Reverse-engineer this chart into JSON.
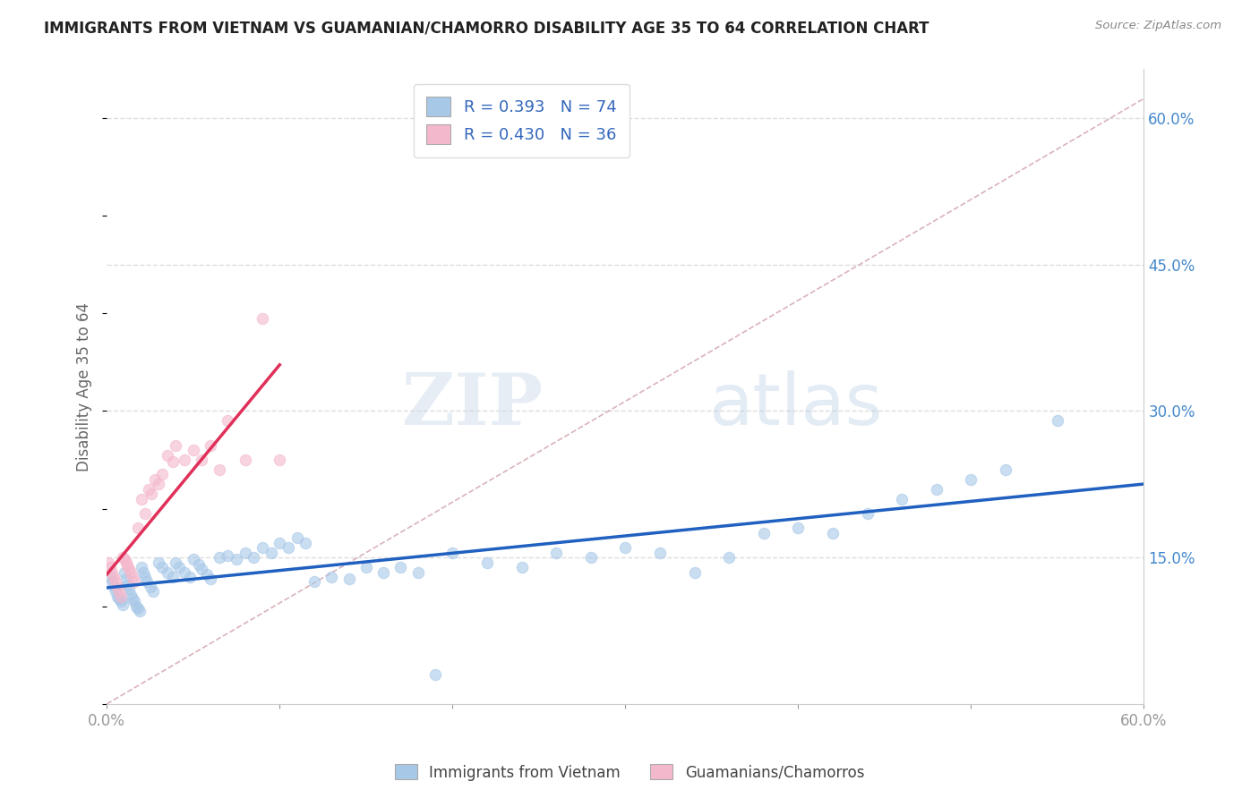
{
  "title": "IMMIGRANTS FROM VIETNAM VS GUAMANIAN/CHAMORRO DISABILITY AGE 35 TO 64 CORRELATION CHART",
  "source": "Source: ZipAtlas.com",
  "ylabel_label": "Disability Age 35 to 64",
  "xlim": [
    0.0,
    0.6
  ],
  "ylim": [
    0.0,
    0.65
  ],
  "xticks": [
    0.0,
    0.1,
    0.2,
    0.3,
    0.4,
    0.5,
    0.6
  ],
  "xticklabels": [
    "0.0%",
    "",
    "",
    "",
    "",
    "",
    "60.0%"
  ],
  "yticks_right": [
    0.15,
    0.3,
    0.45,
    0.6
  ],
  "ytick_right_labels": [
    "15.0%",
    "30.0%",
    "45.0%",
    "60.0%"
  ],
  "color_vietnam": "#a8c8e8",
  "color_guam": "#f4b8cc",
  "color_vietnam_line": "#2060c0",
  "color_guam_line": "#e0305a",
  "color_trendline_dashed": "#d0a0a8",
  "R_vietnam": 0.393,
  "N_vietnam": 74,
  "R_guam": 0.43,
  "N_guam": 36,
  "legend1_label": "Immigrants from Vietnam",
  "legend2_label": "Guamanians/Chamorros",
  "watermark_zip": "ZIP",
  "watermark_atlas": "atlas",
  "vietnam_x": [
    0.002,
    0.003,
    0.004,
    0.005,
    0.006,
    0.007,
    0.008,
    0.009,
    0.01,
    0.011,
    0.012,
    0.013,
    0.014,
    0.015,
    0.016,
    0.017,
    0.018,
    0.019,
    0.02,
    0.021,
    0.022,
    0.023,
    0.025,
    0.027,
    0.03,
    0.032,
    0.035,
    0.038,
    0.04,
    0.042,
    0.045,
    0.048,
    0.05,
    0.053,
    0.055,
    0.058,
    0.06,
    0.065,
    0.07,
    0.075,
    0.08,
    0.085,
    0.09,
    0.095,
    0.1,
    0.105,
    0.11,
    0.115,
    0.12,
    0.13,
    0.14,
    0.15,
    0.16,
    0.17,
    0.18,
    0.19,
    0.2,
    0.22,
    0.24,
    0.26,
    0.28,
    0.3,
    0.32,
    0.34,
    0.36,
    0.38,
    0.4,
    0.42,
    0.44,
    0.46,
    0.48,
    0.5,
    0.52,
    0.55
  ],
  "vietnam_y": [
    0.13,
    0.125,
    0.12,
    0.115,
    0.11,
    0.108,
    0.105,
    0.102,
    0.135,
    0.128,
    0.122,
    0.118,
    0.112,
    0.108,
    0.105,
    0.1,
    0.098,
    0.095,
    0.14,
    0.135,
    0.13,
    0.125,
    0.12,
    0.115,
    0.145,
    0.14,
    0.135,
    0.13,
    0.145,
    0.14,
    0.135,
    0.13,
    0.148,
    0.143,
    0.138,
    0.133,
    0.128,
    0.15,
    0.152,
    0.148,
    0.155,
    0.15,
    0.16,
    0.155,
    0.165,
    0.16,
    0.17,
    0.165,
    0.125,
    0.13,
    0.128,
    0.14,
    0.135,
    0.14,
    0.135,
    0.03,
    0.155,
    0.145,
    0.14,
    0.155,
    0.15,
    0.16,
    0.155,
    0.135,
    0.15,
    0.175,
    0.18,
    0.175,
    0.195,
    0.21,
    0.22,
    0.23,
    0.24,
    0.29
  ],
  "guam_x": [
    0.001,
    0.002,
    0.003,
    0.004,
    0.005,
    0.006,
    0.007,
    0.008,
    0.009,
    0.01,
    0.011,
    0.012,
    0.013,
    0.014,
    0.015,
    0.016,
    0.018,
    0.02,
    0.022,
    0.024,
    0.026,
    0.028,
    0.03,
    0.032,
    0.035,
    0.038,
    0.04,
    0.045,
    0.05,
    0.055,
    0.06,
    0.065,
    0.07,
    0.08,
    0.09,
    0.1
  ],
  "guam_y": [
    0.145,
    0.14,
    0.135,
    0.13,
    0.125,
    0.12,
    0.115,
    0.11,
    0.15,
    0.148,
    0.145,
    0.142,
    0.138,
    0.135,
    0.13,
    0.125,
    0.18,
    0.21,
    0.195,
    0.22,
    0.215,
    0.23,
    0.225,
    0.235,
    0.255,
    0.248,
    0.265,
    0.25,
    0.26,
    0.25,
    0.265,
    0.24,
    0.29,
    0.25,
    0.395,
    0.25
  ]
}
